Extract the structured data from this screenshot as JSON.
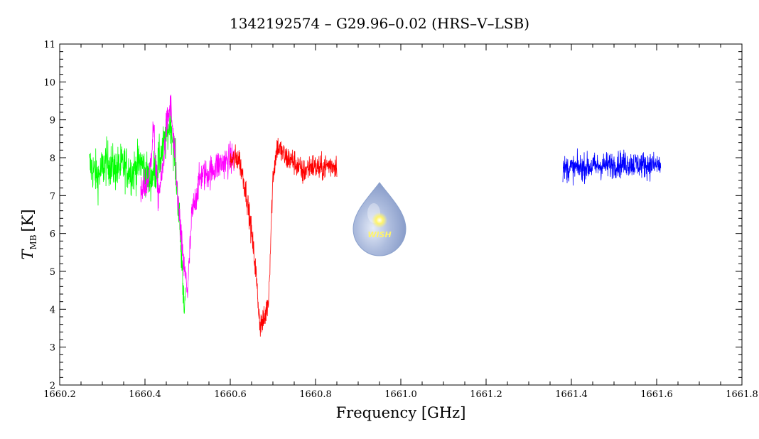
{
  "chart_data": {
    "type": "line",
    "title": "1342192574 – G29.96–0.02 (HRS–V–LSB)",
    "xlabel": "Frequency [GHz]",
    "ylabel_main": "T",
    "ylabel_sub": "MB",
    "ylabel_unit": "[K]",
    "xlim": [
      1660.2,
      1661.8
    ],
    "ylim": [
      2,
      11
    ],
    "x_ticks": [
      "1660.2",
      "1660.4",
      "1660.6",
      "1660.8",
      "1661.0",
      "1661.2",
      "1661.4",
      "1661.6",
      "1661.8"
    ],
    "y_ticks": [
      "2",
      "3",
      "4",
      "5",
      "6",
      "7",
      "8",
      "9",
      "10",
      "11"
    ],
    "grid": false,
    "series": [
      {
        "color": "#00ff00",
        "x": [
          1660.27,
          1660.29,
          1660.31,
          1660.33,
          1660.35,
          1660.37,
          1660.39,
          1660.41,
          1660.43,
          1660.45,
          1660.46,
          1660.47,
          1660.48,
          1660.485,
          1660.49,
          1660.495
        ],
        "y": [
          7.8,
          7.5,
          7.9,
          7.7,
          7.8,
          7.6,
          7.9,
          7.4,
          7.8,
          8.5,
          9.0,
          8.0,
          6.5,
          5.5,
          4.5,
          4.0
        ],
        "noise": 0.75
      },
      {
        "color": "#ff00ff",
        "x": [
          1660.39,
          1660.41,
          1660.42,
          1660.43,
          1660.44,
          1660.45,
          1660.46,
          1660.47,
          1660.48,
          1660.49,
          1660.5,
          1660.51,
          1660.53,
          1660.55,
          1660.57,
          1660.59,
          1660.61
        ],
        "y": [
          7.0,
          7.5,
          8.8,
          7.0,
          7.5,
          8.8,
          9.4,
          8.0,
          6.5,
          5.2,
          4.5,
          6.5,
          7.5,
          7.6,
          7.8,
          7.9,
          8.0
        ],
        "noise": 0.55
      },
      {
        "color": "#ff0000",
        "x": [
          1660.6,
          1660.62,
          1660.63,
          1660.64,
          1660.65,
          1660.66,
          1660.665,
          1660.67,
          1660.68,
          1660.69,
          1660.7,
          1660.71,
          1660.73,
          1660.75,
          1660.77,
          1660.79,
          1660.81,
          1660.83,
          1660.85
        ],
        "y": [
          7.9,
          8.0,
          7.5,
          6.9,
          6.0,
          5.0,
          4.2,
          3.6,
          3.7,
          4.3,
          7.5,
          8.3,
          8.0,
          7.9,
          7.6,
          7.8,
          7.7,
          7.8,
          7.8
        ],
        "noise": 0.45
      },
      {
        "color": "#0000ff",
        "x": [
          1661.38,
          1661.43,
          1661.48,
          1661.53,
          1661.58,
          1661.61
        ],
        "y": [
          7.7,
          7.75,
          7.8,
          7.85,
          7.8,
          7.8
        ],
        "noise": 0.45
      }
    ],
    "logo_text": "WISH"
  }
}
